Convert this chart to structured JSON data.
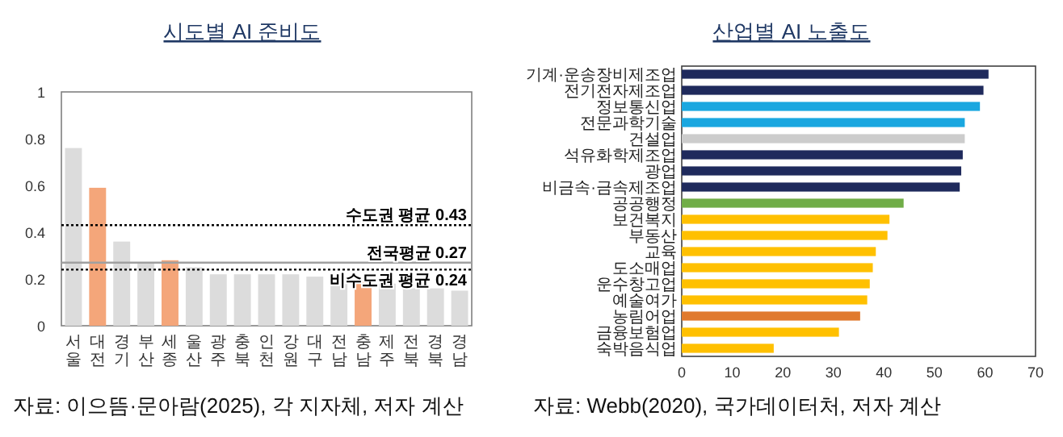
{
  "chart_data": [
    {
      "type": "bar",
      "title": "시도별 AI 준비도",
      "grid": false,
      "categories": [
        "서울",
        "대전",
        "경기",
        "부산",
        "세종",
        "울산",
        "광주",
        "충북",
        "인천",
        "강원",
        "대구",
        "전남",
        "충남",
        "제주",
        "전북",
        "경북",
        "경남"
      ],
      "values": [
        0.76,
        0.59,
        0.36,
        0.27,
        0.28,
        0.25,
        0.22,
        0.22,
        0.22,
        0.22,
        0.21,
        0.18,
        0.19,
        0.18,
        0.16,
        0.16,
        0.15
      ],
      "colors": [
        "#dcdcdc",
        "#f4a67a",
        "#dcdcdc",
        "#dcdcdc",
        "#f4a67a",
        "#dcdcdc",
        "#dcdcdc",
        "#dcdcdc",
        "#dcdcdc",
        "#dcdcdc",
        "#dcdcdc",
        "#dcdcdc",
        "#f4a67a",
        "#dcdcdc",
        "#dcdcdc",
        "#dcdcdc",
        "#dcdcdc"
      ],
      "ylim": [
        0,
        1
      ],
      "yticks": [
        0,
        0.2,
        0.4,
        0.6,
        0.8,
        1
      ],
      "ref_lines": [
        {
          "axis": "y",
          "value": 0.43,
          "label": "수도권 평균 0.43",
          "color": "#000000",
          "line_style": "dotted"
        },
        {
          "axis": "y",
          "value": 0.27,
          "label": "전국평균 0.27",
          "color": "#a0a0a0",
          "line_style": "solid"
        },
        {
          "axis": "y",
          "value": 0.24,
          "label": "비수도권 평균 0.24",
          "color": "#000000",
          "line_style": "dotted"
        }
      ],
      "annotations": [
        "자료: 이으뜸·문아람(2025), 각 지자체, 저자 계산"
      ]
    },
    {
      "type": "bar",
      "orientation": "horizontal",
      "title": "산업별 AI 노출도",
      "grid": false,
      "categories": [
        "기계·운송장비제조업",
        "전기전자제조업",
        "정보통신업",
        "전문과학기술",
        "건설업",
        "석유화학제조업",
        "광업",
        "비금속·금속제조업",
        "공공행정",
        "보건복지",
        "부동산",
        "교육",
        "도소매업",
        "운수창고업",
        "예술여가",
        "농림어업",
        "금융보험업",
        "숙박음식업"
      ],
      "values": [
        60.7,
        59.7,
        59.0,
        56.0,
        56.0,
        55.6,
        55.3,
        55.0,
        43.9,
        41.1,
        40.7,
        38.4,
        37.8,
        37.2,
        36.7,
        35.3,
        31.1,
        18.2
      ],
      "colors": [
        "#1f2a5c",
        "#1f2a5c",
        "#1aa7e0",
        "#1aa7e0",
        "#cccccc",
        "#1f2a5c",
        "#1f2a5c",
        "#1f2a5c",
        "#70ad47",
        "#ffc000",
        "#ffc000",
        "#ffc000",
        "#ffc000",
        "#ffc000",
        "#ffc000",
        "#e07a2e",
        "#ffc000",
        "#ffc000"
      ],
      "xlim": [
        0,
        70
      ],
      "xticks": [
        0,
        10,
        20,
        30,
        40,
        50,
        60,
        70
      ],
      "annotations": [
        "자료: Webb(2020), 국가데이터처, 저자 계산"
      ]
    }
  ]
}
